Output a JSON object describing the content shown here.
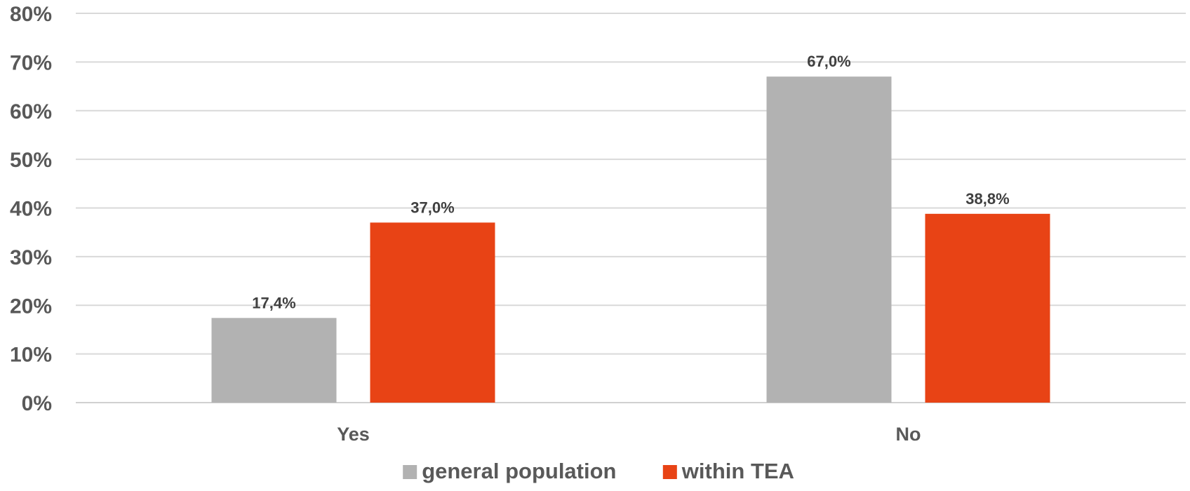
{
  "chart_data": {
    "type": "bar",
    "categories": [
      "Yes",
      "No"
    ],
    "series": [
      {
        "name": "general population",
        "values": [
          17.4,
          67.0
        ],
        "labels": [
          "17,4%",
          "67,0%"
        ],
        "color": "#b2b2b2"
      },
      {
        "name": "within TEA",
        "values": [
          37.0,
          38.8
        ],
        "labels": [
          "37,0%",
          "38,8%"
        ],
        "color": "#e84315"
      }
    ],
    "title": "",
    "xlabel": "",
    "ylabel": "",
    "ylim": [
      0,
      80
    ],
    "yticks": [
      0,
      10,
      20,
      30,
      40,
      50,
      60,
      70,
      80
    ],
    "ytick_labels": [
      "0%",
      "10%",
      "20%",
      "30%",
      "40%",
      "50%",
      "60%",
      "70%",
      "80%"
    ],
    "grid": true,
    "legend_position": "bottom"
  }
}
